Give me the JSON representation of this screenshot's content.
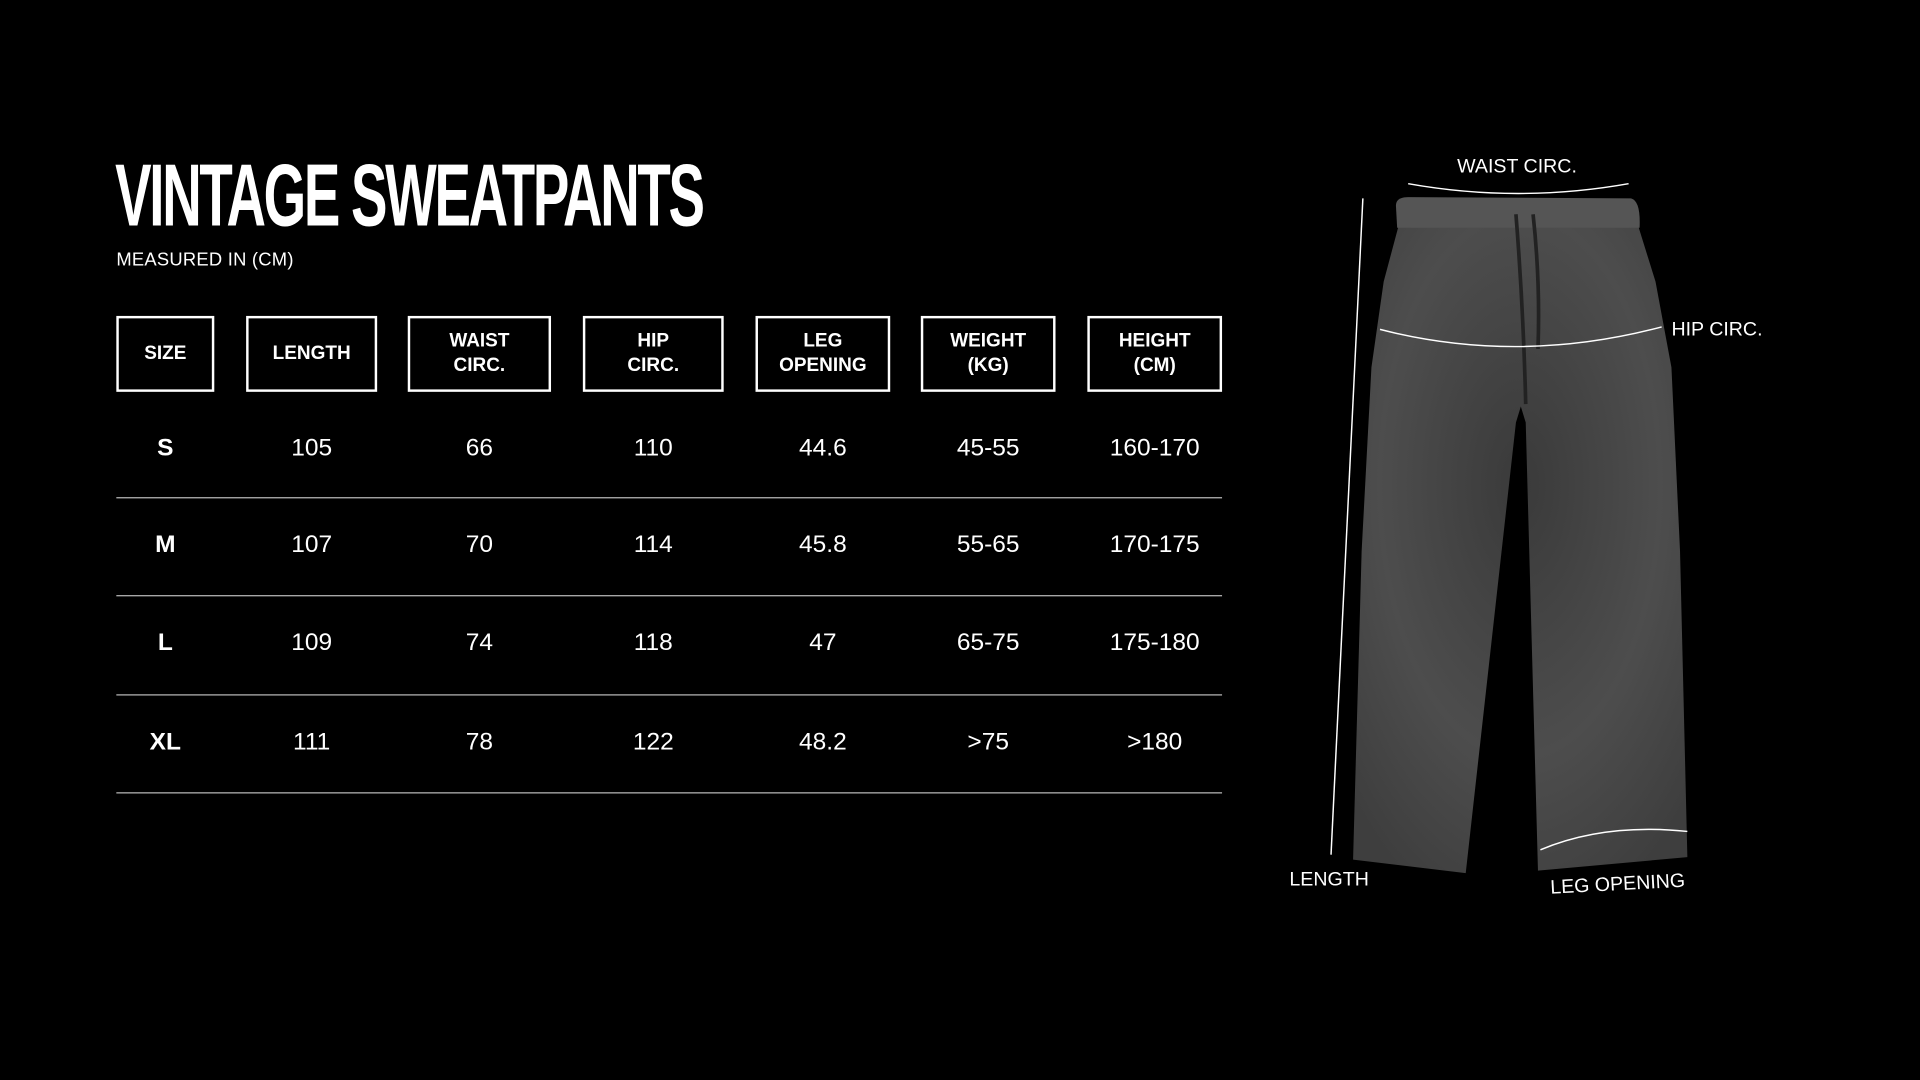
{
  "title": "VINTAGE SWEATPANTS",
  "subtitle": "MEASURED IN (CM)",
  "table": {
    "headers": [
      "SIZE",
      "LENGTH",
      "WAIST\nCIRC.",
      "HIP\nCIRC.",
      "LEG\nOPENING",
      "WEIGHT\n(KG)",
      "HEIGHT\n(CM)"
    ],
    "rows": [
      [
        "S",
        "105",
        "66",
        "110",
        "44.6",
        "45-55",
        "160-170"
      ],
      [
        "M",
        "107",
        "70",
        "114",
        "45.8",
        "55-65",
        "170-175"
      ],
      [
        "L",
        "109",
        "74",
        "118",
        "47",
        "65-75",
        "175-180"
      ],
      [
        "XL",
        "111",
        "78",
        "122",
        "48.2",
        ">75",
        ">180"
      ]
    ]
  },
  "diagram": {
    "waist_label": "WAIST CIRC.",
    "hip_label": "HIP CIRC.",
    "length_label": "LENGTH",
    "leg_opening_label": "LEG OPENING",
    "garment_color": "#4a4a4a"
  }
}
